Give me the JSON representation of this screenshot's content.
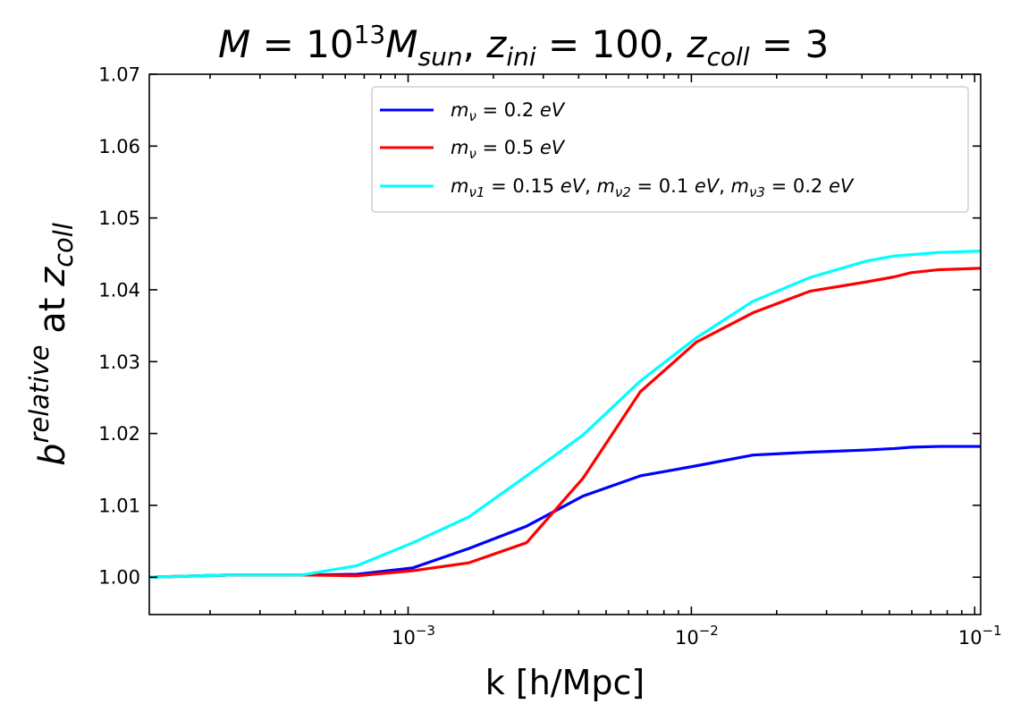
{
  "chart_data": {
    "type": "line",
    "title": {
      "M": "M",
      "eq1": " = 10",
      "exp": "13",
      "Msun": "M",
      "sun": "sun",
      "comma1": ", ",
      "z1": "z",
      "ini": "ini",
      "eq2": " = 100, ",
      "z2": "z",
      "coll": "coll",
      "eq3": " = 3"
    },
    "xlabel": "k [h/Mpc]",
    "ylabel": {
      "b": "b",
      "sup": "relative",
      "at": " at ",
      "z": "z",
      "sub": "coll"
    },
    "x_scale": "log",
    "xlim": [
      0.000122,
      0.105
    ],
    "ylim": [
      0.9948,
      1.07
    ],
    "x_ticks": [
      {
        "value": 0.001,
        "base": "10",
        "exp": "−3"
      },
      {
        "value": 0.01,
        "base": "10",
        "exp": "−2"
      },
      {
        "value": 0.1,
        "base": "10",
        "exp": "−1"
      }
    ],
    "y_ticks": [
      {
        "value": 1.0,
        "label": "1.00"
      },
      {
        "value": 1.01,
        "label": "1.01"
      },
      {
        "value": 1.02,
        "label": "1.02"
      },
      {
        "value": 1.03,
        "label": "1.03"
      },
      {
        "value": 1.04,
        "label": "1.04"
      },
      {
        "value": 1.05,
        "label": "1.05"
      },
      {
        "value": 1.06,
        "label": "1.06"
      },
      {
        "value": 1.07,
        "label": "1.07"
      }
    ],
    "x": [
      0.000122,
      0.000186,
      0.000236,
      0.000421,
      0.00066,
      0.00104,
      0.00164,
      0.00262,
      0.00415,
      0.0066,
      0.0104,
      0.0165,
      0.0262,
      0.0415,
      0.052,
      0.06,
      0.075,
      0.09,
      0.105
    ],
    "series": [
      {
        "name": "m_nu = 0.2 eV",
        "color": "#0000ff",
        "values": [
          1.0,
          1.0002,
          1.0003,
          1.0003,
          1.0004,
          1.0013,
          1.004,
          1.0071,
          1.0113,
          1.0141,
          1.0155,
          1.017,
          1.0174,
          1.0177,
          1.0179,
          1.0181,
          1.0182,
          1.0182,
          1.0182
        ]
      },
      {
        "name": "m_nu = 0.5 eV",
        "color": "#ff0000",
        "values": [
          1.0,
          1.0002,
          1.0003,
          1.0003,
          1.0002,
          1.0009,
          1.002,
          1.0048,
          1.0138,
          1.0258,
          1.0327,
          1.0368,
          1.0398,
          1.0411,
          1.0418,
          1.0424,
          1.0428,
          1.0429,
          1.043
        ]
      },
      {
        "name": "m_nu1 = 0.15 eV, m_nu2 = 0.1 eV, m_nu3 = 0.2 eV",
        "color": "#00ffff",
        "values": [
          1.0,
          1.0002,
          1.0003,
          1.0003,
          1.0016,
          1.0048,
          1.0084,
          1.0141,
          1.0198,
          1.0273,
          1.0333,
          1.0384,
          1.0417,
          1.044,
          1.0447,
          1.0449,
          1.0452,
          1.0453,
          1.0454
        ]
      }
    ],
    "legend": {
      "position": "top-right",
      "entries": [
        {
          "color": "#0000ff",
          "m": "m",
          "sub": "ν",
          "rest": " = 0.2 ",
          "unit": "eV"
        },
        {
          "color": "#ff0000",
          "m": "m",
          "sub": "ν",
          "rest": " = 0.5 ",
          "unit": "eV"
        },
        {
          "color": "#00ffff",
          "parts": [
            {
              "m": "m",
              "sub": "ν1",
              "rest": " = 0.15 ",
              "unit": "eV",
              "sep": ", "
            },
            {
              "m": "m",
              "sub": "ν2",
              "rest": " = 0.1 ",
              "unit": "eV",
              "sep": ", "
            },
            {
              "m": "m",
              "sub": "ν3",
              "rest": " = 0.2 ",
              "unit": "eV",
              "sep": ""
            }
          ]
        }
      ]
    }
  }
}
